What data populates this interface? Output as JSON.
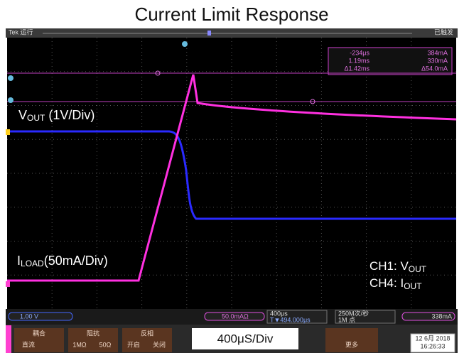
{
  "title": "Current Limit Response",
  "status": {
    "run": "Tek 运行",
    "trigger_state": "已触发"
  },
  "cursors": {
    "t1": "-234μs",
    "v1": "384mA",
    "t2": "1.19ms",
    "v2": "330mA",
    "dt": "Δ1.42ms",
    "dv": "Δ54.0mA"
  },
  "labels": {
    "vout": {
      "main": "V",
      "sub": "OUT",
      "rest": " (1V/Div)"
    },
    "iload": {
      "main": "I",
      "sub": "LOAD",
      "rest": "(50mA/Div)"
    },
    "ch1": {
      "main": "CH1: V",
      "sub": "OUT"
    },
    "ch4": {
      "main": "CH4:  I",
      "sub": "OUT"
    }
  },
  "bottom_bar": {
    "ch1_scale": "1.00 V",
    "ch4_scale": "50.0mAΩ",
    "timebase": "400μs",
    "delay": "T▼494.000μs",
    "rate": "250M次/秒",
    "points": "1M 点",
    "trigger_level": "338mA"
  },
  "menu": {
    "coupling": "耦合",
    "coupling_value": "直流",
    "impedance": "阻抗",
    "imp_1m": "1MΩ",
    "imp_50": "50Ω",
    "invert": "反相",
    "invert_on": "开启",
    "invert_off": "关闭",
    "more": "更多"
  },
  "timebase_caption": "400μS/Div",
  "date": "12 6月 2018",
  "time": "16:26:33"
}
